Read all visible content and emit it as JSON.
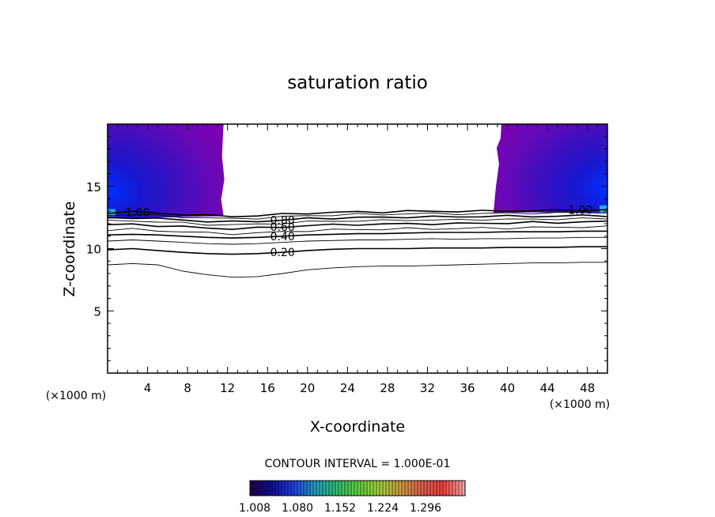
{
  "chart_data": {
    "type": "contour",
    "title": "saturation ratio",
    "xlabel": "X-coordinate",
    "ylabel": "Z-coordinate",
    "x_unit_left": "(×1000 m)",
    "x_unit_right": "(×1000 m)",
    "xlim": [
      0,
      50
    ],
    "ylim": [
      0,
      20
    ],
    "x_ticks": [
      "4",
      "8",
      "12",
      "16",
      "20",
      "24",
      "28",
      "32",
      "36",
      "40",
      "44",
      "48"
    ],
    "y_ticks": [
      "5",
      "10",
      "15"
    ],
    "contour_interval_text": "CONTOUR INTERVAL = 1.000E-01",
    "contour_levels": [
      {
        "level": 0.1,
        "label": "",
        "z": [
          8.7,
          8.8,
          8.7,
          8.2,
          7.9,
          7.7,
          7.75,
          8.0,
          8.3,
          8.45,
          8.55,
          8.6,
          8.6,
          8.65,
          8.7,
          8.75,
          8.8,
          8.85,
          8.85,
          8.9,
          8.9
        ]
      },
      {
        "level": 0.2,
        "label": "0.20",
        "z": [
          9.9,
          10.0,
          9.85,
          9.7,
          9.6,
          9.55,
          9.6,
          9.7,
          9.85,
          9.95,
          10.0,
          10.0,
          10.0,
          10.05,
          10.05,
          10.05,
          10.1,
          10.1,
          10.1,
          10.15,
          10.15
        ]
      },
      {
        "level": 0.3,
        "label": "",
        "z": [
          10.6,
          10.7,
          10.6,
          10.5,
          10.4,
          10.35,
          10.4,
          10.5,
          10.6,
          10.65,
          10.7,
          10.7,
          10.75,
          10.8,
          10.75,
          10.8,
          10.8,
          10.85,
          10.85,
          10.9,
          10.9
        ]
      },
      {
        "level": 0.4,
        "label": "0.40",
        "z": [
          11.1,
          11.15,
          11.1,
          11.0,
          10.9,
          10.85,
          10.9,
          11.0,
          11.1,
          11.15,
          11.2,
          11.2,
          11.25,
          11.3,
          11.3,
          11.3,
          11.35,
          11.35,
          11.35,
          11.4,
          11.4
        ]
      },
      {
        "level": 0.5,
        "label": "",
        "z": [
          11.5,
          11.55,
          11.45,
          11.35,
          11.25,
          11.2,
          11.25,
          11.35,
          11.45,
          11.5,
          11.55,
          11.55,
          11.6,
          11.6,
          11.6,
          11.65,
          11.65,
          11.7,
          11.7,
          11.75,
          11.75
        ]
      },
      {
        "level": 0.6,
        "label": "0.60",
        "z": [
          11.9,
          11.95,
          11.85,
          11.75,
          11.65,
          11.6,
          11.65,
          11.75,
          11.85,
          11.9,
          11.95,
          11.95,
          12.0,
          12.0,
          12.0,
          12.05,
          12.05,
          12.1,
          12.1,
          12.15,
          12.15
        ]
      },
      {
        "level": 0.7,
        "label": "",
        "z": [
          12.2,
          12.25,
          12.15,
          12.05,
          11.95,
          11.9,
          11.95,
          12.05,
          12.15,
          12.2,
          12.25,
          12.25,
          12.3,
          12.3,
          12.3,
          12.35,
          12.35,
          12.35,
          12.4,
          12.4,
          12.4
        ]
      },
      {
        "level": 0.8,
        "label": "0.80",
        "z": [
          12.45,
          12.5,
          12.4,
          12.3,
          12.2,
          12.15,
          12.2,
          12.3,
          12.4,
          12.45,
          12.5,
          12.5,
          12.55,
          12.55,
          12.55,
          12.6,
          12.6,
          12.6,
          12.6,
          12.65,
          12.65
        ]
      },
      {
        "level": 0.9,
        "label": "",
        "z": [
          12.7,
          12.75,
          12.65,
          12.55,
          12.45,
          12.4,
          12.45,
          12.55,
          12.65,
          12.7,
          12.75,
          12.75,
          12.8,
          12.8,
          12.8,
          12.8,
          12.85,
          12.85,
          12.85,
          12.9,
          12.9
        ]
      },
      {
        "level": 1.0,
        "label": "1.00",
        "z": [
          12.9,
          12.95,
          12.85,
          12.75,
          12.65,
          12.6,
          12.65,
          12.75,
          12.85,
          12.9,
          12.95,
          12.95,
          13.0,
          13.0,
          13.0,
          13.0,
          13.05,
          13.05,
          13.05,
          13.1,
          13.1
        ]
      }
    ],
    "supersaturated_regions": [
      {
        "side": "left",
        "x_range": [
          0,
          11.6
        ],
        "z_range": [
          12.6,
          20
        ],
        "fill": "#7b00b0"
      },
      {
        "side": "right",
        "x_range": [
          38.6,
          50
        ],
        "z_range": [
          12.9,
          20
        ],
        "fill": "#7b00b0"
      }
    ],
    "colorbar": {
      "ticks": [
        "1.008",
        "1.080",
        "1.152",
        "1.224",
        "1.296"
      ],
      "colors": [
        "#200050",
        "#1010a0",
        "#2040e0",
        "#20a0c0",
        "#30c070",
        "#60d040",
        "#a0d040",
        "#d0a040",
        "#e06050",
        "#f04040",
        "#ffa0a0"
      ]
    }
  }
}
